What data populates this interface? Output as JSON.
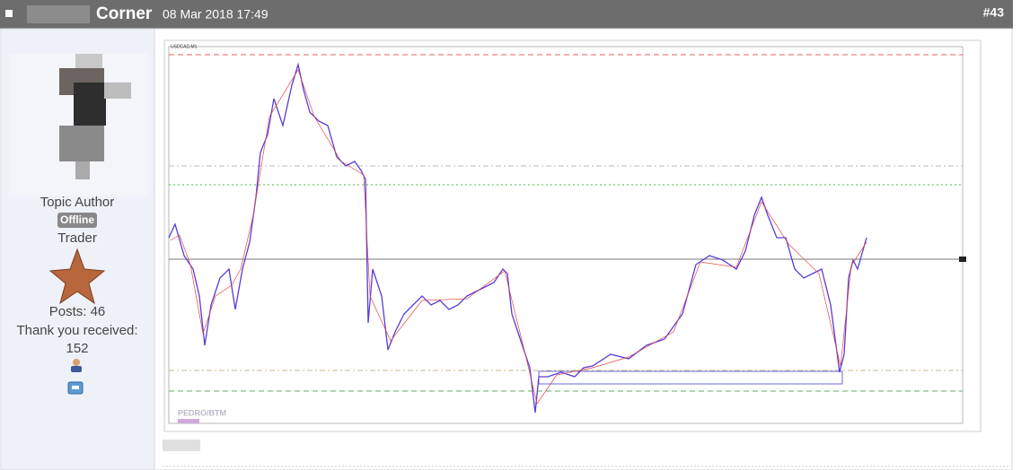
{
  "post": {
    "author": "Corner",
    "date": "08 Mar 2018 17:49",
    "number": "#43"
  },
  "profile": {
    "role": "Topic Author",
    "status": "Offline",
    "rank": "Trader",
    "posts": "Posts: 46",
    "thanks_label": "Thank you received:",
    "thanks_count": "152"
  },
  "chart_image": {
    "symbol": "USDCAD,M1",
    "watermark": "PEDRO/BTM"
  }
}
